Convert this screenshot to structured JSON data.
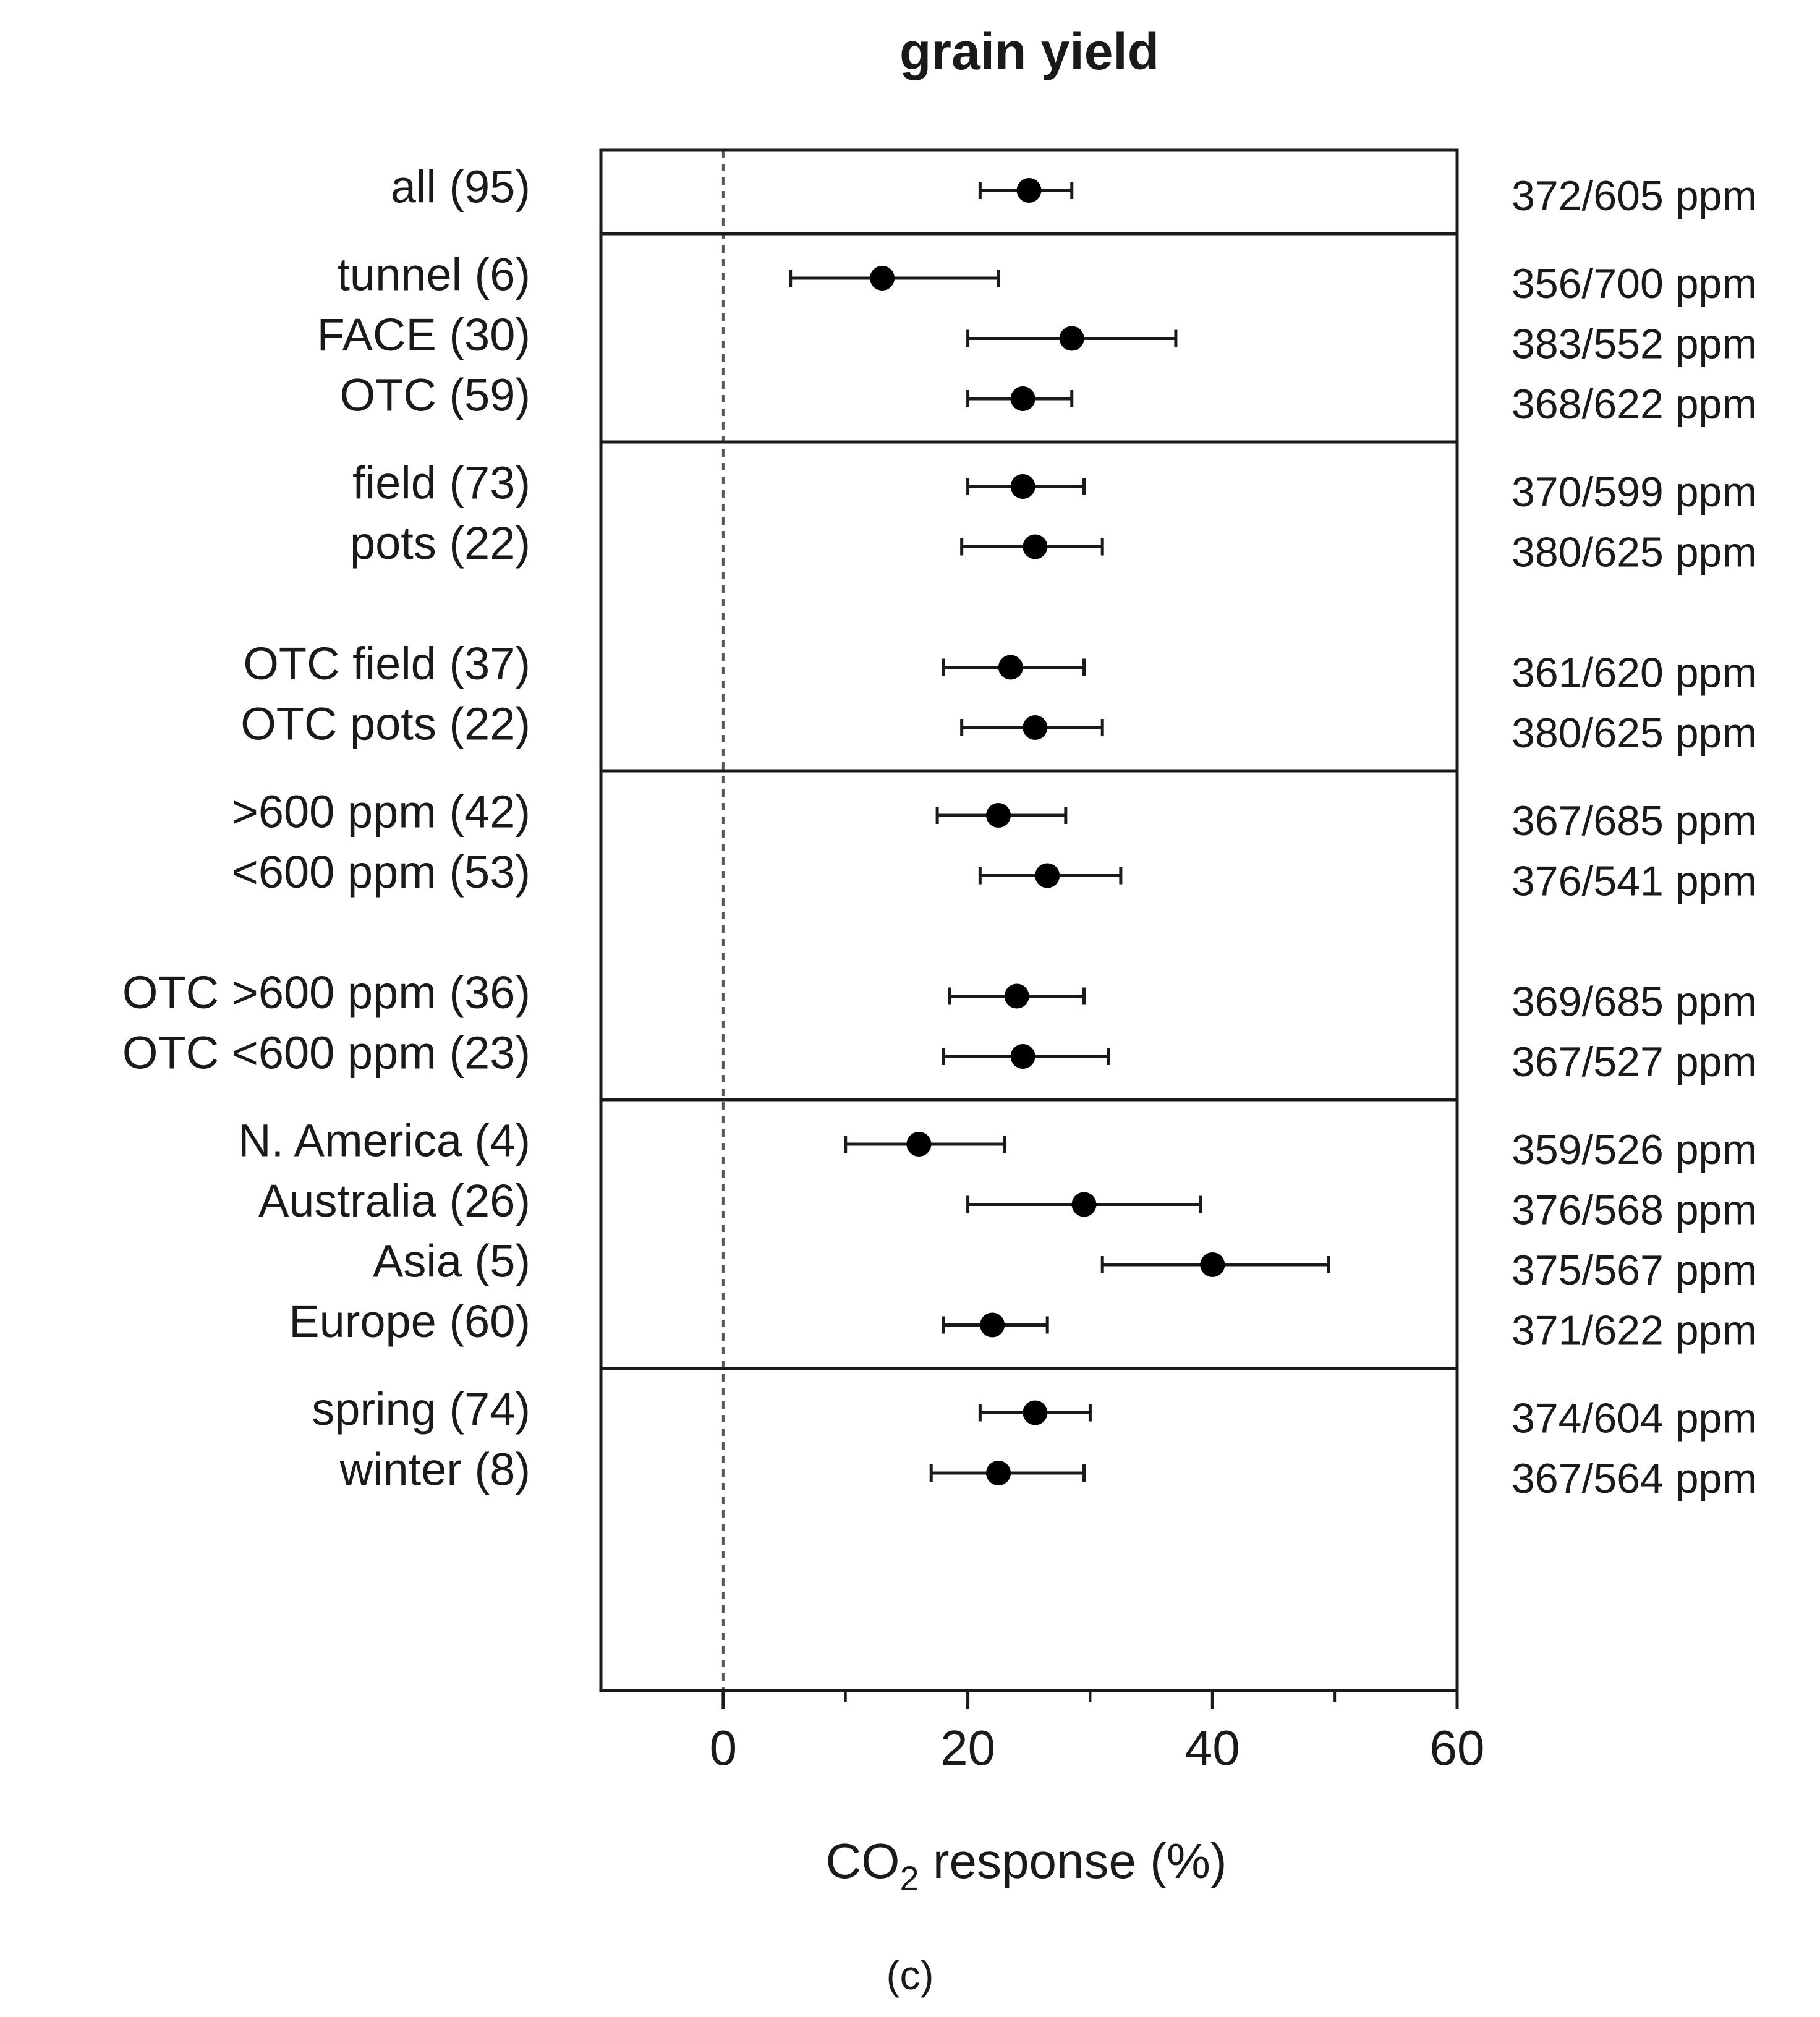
{
  "chart_data": {
    "type": "forest",
    "title": "grain yield",
    "xlabel_main": "CO",
    "xlabel_sub": "2",
    "xlabel_rest": " response (%)",
    "xlim": [
      -10,
      60
    ],
    "xticks": [
      0,
      20,
      40,
      60
    ],
    "xticks_minor": [
      10,
      30,
      50
    ],
    "reference_line_x": 0,
    "panel_label": "(c)",
    "groups": [
      {
        "rows": [
          {
            "label": "all (95)",
            "value": 25,
            "ci_low": 21,
            "ci_high": 28.5,
            "ppm": "372/605 ppm"
          }
        ]
      },
      {
        "rows": [
          {
            "label": "tunnel (6)",
            "value": 13,
            "ci_low": 5.5,
            "ci_high": 22.5,
            "ppm": "356/700 ppm"
          },
          {
            "label": "FACE (30)",
            "value": 28.5,
            "ci_low": 20,
            "ci_high": 37,
            "ppm": "383/552 ppm"
          },
          {
            "label": "OTC (59)",
            "value": 24.5,
            "ci_low": 20,
            "ci_high": 28.5,
            "ppm": "368/622 ppm"
          }
        ]
      },
      {
        "rows": [
          {
            "label": "field (73)",
            "value": 24.5,
            "ci_low": 20,
            "ci_high": 29.5,
            "ppm": "370/599 ppm"
          },
          {
            "label": "pots (22)",
            "value": 25.5,
            "ci_low": 19.5,
            "ci_high": 31,
            "ppm": "380/625 ppm"
          },
          {
            "gap": true
          },
          {
            "label": "OTC field (37)",
            "value": 23.5,
            "ci_low": 18,
            "ci_high": 29.5,
            "ppm": "361/620 ppm"
          },
          {
            "label": "OTC pots (22)",
            "value": 25.5,
            "ci_low": 19.5,
            "ci_high": 31,
            "ppm": "380/625 ppm"
          }
        ]
      },
      {
        "rows": [
          {
            "label": ">600 ppm (42)",
            "value": 22.5,
            "ci_low": 17.5,
            "ci_high": 28,
            "ppm": "367/685 ppm"
          },
          {
            "label": "<600 ppm (53)",
            "value": 26.5,
            "ci_low": 21,
            "ci_high": 32.5,
            "ppm": "376/541 ppm"
          },
          {
            "gap": true
          },
          {
            "label": "OTC >600 ppm  (36)",
            "value": 24,
            "ci_low": 18.5,
            "ci_high": 29.5,
            "ppm": "369/685 ppm"
          },
          {
            "label": "OTC <600 ppm  (23)",
            "value": 24.5,
            "ci_low": 18,
            "ci_high": 31.5,
            "ppm": "367/527 ppm"
          }
        ]
      },
      {
        "rows": [
          {
            "label": "N. America (4)",
            "value": 16,
            "ci_low": 10,
            "ci_high": 23,
            "ppm": "359/526 ppm"
          },
          {
            "label": "Australia (26)",
            "value": 29.5,
            "ci_low": 20,
            "ci_high": 39,
            "ppm": "376/568 ppm"
          },
          {
            "label": "Asia (5)",
            "value": 40,
            "ci_low": 31,
            "ci_high": 49.5,
            "ppm": "375/567 ppm"
          },
          {
            "label": "Europe (60)",
            "value": 22,
            "ci_low": 18,
            "ci_high": 26.5,
            "ppm": "371/622 ppm"
          }
        ]
      },
      {
        "rows": [
          {
            "label": "spring (74)",
            "value": 25.5,
            "ci_low": 21,
            "ci_high": 30,
            "ppm": "374/604 ppm"
          },
          {
            "label": "winter (8)",
            "value": 22.5,
            "ci_low": 17,
            "ci_high": 29.5,
            "ppm": "367/564 ppm"
          }
        ]
      }
    ]
  }
}
